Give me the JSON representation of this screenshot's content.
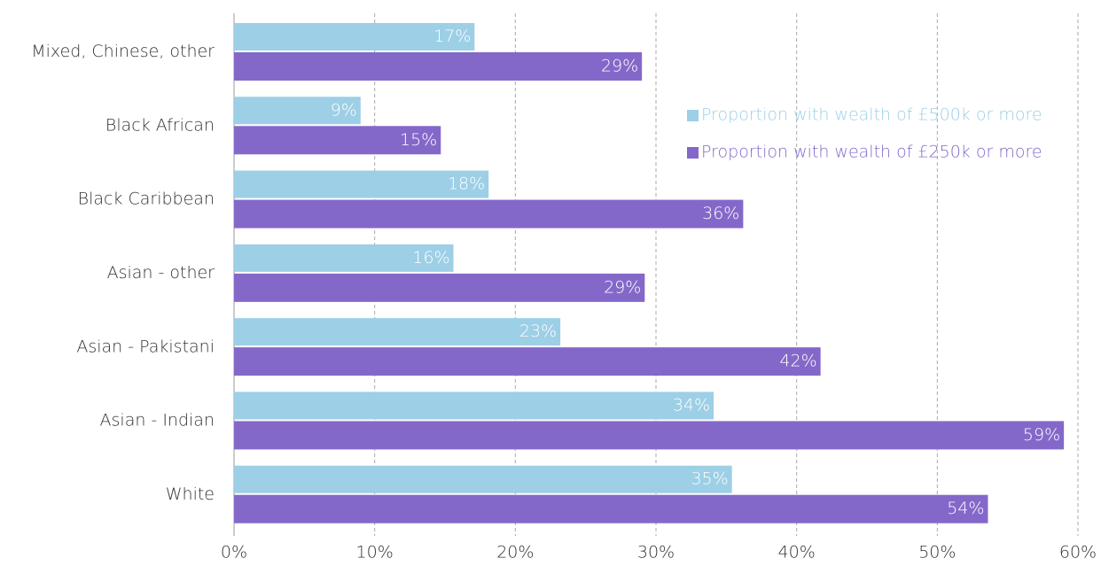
{
  "chart_data": {
    "type": "bar",
    "orientation": "horizontal",
    "categories": [
      "Mixed, Chinese, other",
      "Black African",
      "Black Caribbean",
      "Asian - other",
      "Asian - Pakistani",
      "Asian - Indian",
      "White"
    ],
    "series": [
      {
        "name": "Proportion with wealth of £500k or more",
        "color": "#9dcfe6",
        "values": [
          17.1,
          9.0,
          18.1,
          15.6,
          23.2,
          34.1,
          35.4
        ],
        "value_labels": [
          "17%",
          "9%",
          "18%",
          "16%",
          "23%",
          "34%",
          "35%"
        ]
      },
      {
        "name": "Proportion with wealth of £250k or more",
        "color": "#8468c9",
        "values": [
          29.0,
          14.7,
          36.2,
          29.2,
          41.7,
          59.0,
          53.6
        ],
        "value_labels": [
          "29%",
          "15%",
          "36%",
          "29%",
          "42%",
          "59%",
          "54%"
        ]
      }
    ],
    "xlim": [
      0,
      60
    ],
    "xticks": [
      {
        "value": 0,
        "label": "0%"
      },
      {
        "value": 10,
        "label": "10%"
      },
      {
        "value": 20,
        "label": "20%"
      },
      {
        "value": 30,
        "label": "30%"
      },
      {
        "value": 40,
        "label": "40%"
      },
      {
        "value": 50,
        "label": "50%"
      },
      {
        "value": 60,
        "label": "60%"
      }
    ],
    "grid": true,
    "legend": "upper right"
  }
}
